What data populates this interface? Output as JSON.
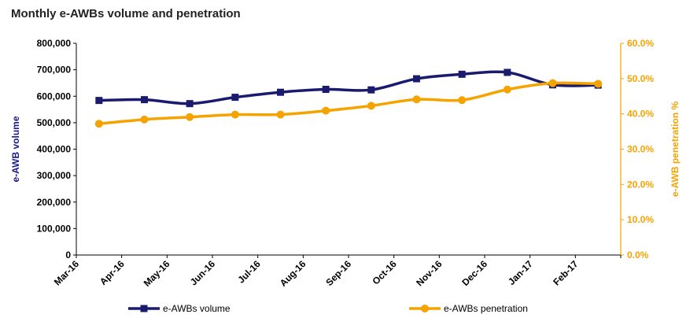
{
  "chart_data": {
    "type": "line",
    "title": "Monthly e-AWBs volume and penetration",
    "x": [
      "Mar-16",
      "Apr-16",
      "May-16",
      "Jun-16",
      "Jul-16",
      "Aug-16",
      "Sep-16",
      "Oct-16",
      "Nov-16",
      "Dec-16",
      "Jan-17",
      "Feb-17"
    ],
    "ylabel": "e-AWB volume",
    "y2label": "e-AWB penetration %",
    "ylim": [
      0,
      800000
    ],
    "y2lim": [
      0,
      0.6
    ],
    "yticks": [
      "0",
      "100,000",
      "200,000",
      "300,000",
      "400,000",
      "500,000",
      "600,000",
      "700,000",
      "800,000"
    ],
    "y2ticks": [
      "0.0%",
      "10.0%",
      "20.0%",
      "30.0%",
      "40.0%",
      "50.0%",
      "60.0%"
    ],
    "series": [
      {
        "name": "e-AWBs volume",
        "axis": "left",
        "color": "#1a1a6e",
        "marker": "square",
        "values": [
          584000,
          587000,
          572000,
          596000,
          615000,
          626000,
          624000,
          666000,
          683000,
          690000,
          643000,
          642000
        ]
      },
      {
        "name": "e-AWBs penetration",
        "axis": "right",
        "color": "#f5a300",
        "marker": "circle",
        "values": [
          0.372,
          0.384,
          0.391,
          0.398,
          0.398,
          0.409,
          0.423,
          0.441,
          0.439,
          0.469,
          0.487,
          0.485
        ]
      }
    ],
    "legend_position": "bottom",
    "grid": false
  }
}
